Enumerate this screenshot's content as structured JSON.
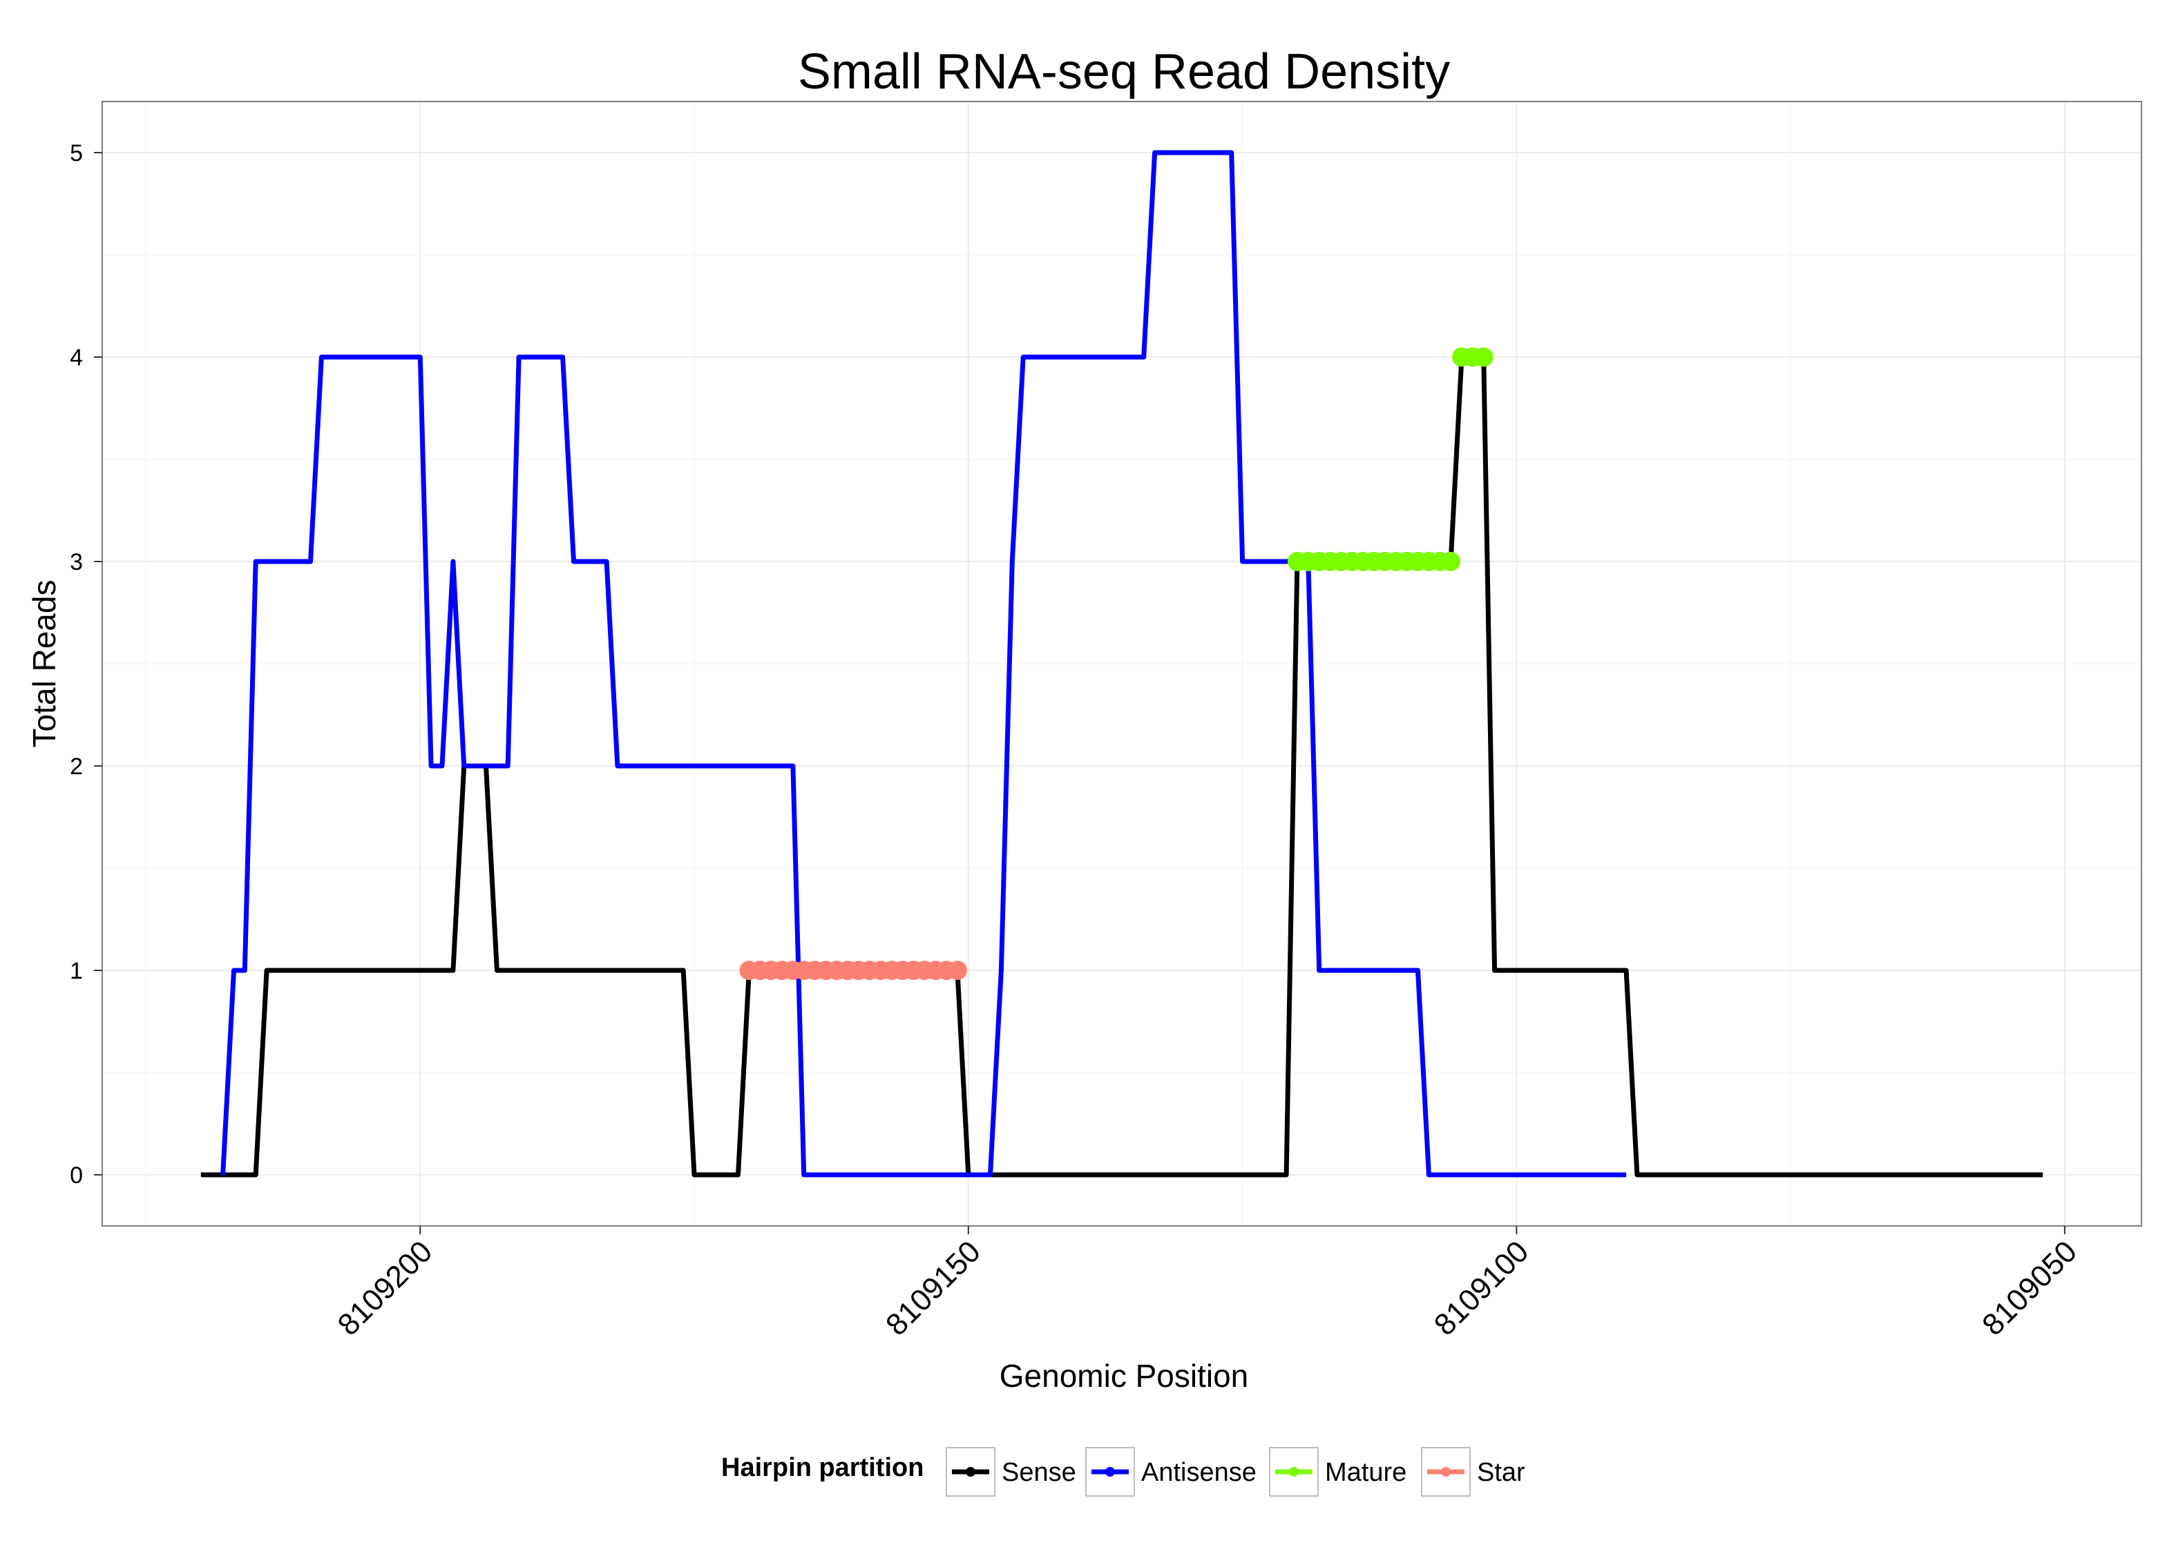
{
  "chart_data": {
    "type": "line",
    "title": "Small RNA-seq Read Density",
    "xlabel": "Genomic Position",
    "ylabel": "Total Reads",
    "x_reversed": true,
    "xlim": [
      8109229,
      8109043
    ],
    "ylim": [
      -0.25,
      5.25
    ],
    "x_ticks": [
      8109200,
      8109150,
      8109100,
      8109050
    ],
    "x_tick_labels": [
      "8109200",
      "8109150",
      "8109100",
      "8109050"
    ],
    "y_ticks": [
      0,
      1,
      2,
      3,
      4,
      5
    ],
    "y_tick_labels": [
      "0",
      "1",
      "2",
      "3",
      "4",
      "5"
    ],
    "grid": true,
    "legend": {
      "title": "Hairpin partition",
      "position": "bottom",
      "entries": [
        {
          "name": "Sense",
          "color": "#000000"
        },
        {
          "name": "Antisense",
          "color": "#0000ff"
        },
        {
          "name": "Mature",
          "color": "#7cfc00"
        },
        {
          "name": "Star",
          "color": "#fa8072"
        }
      ]
    },
    "series": [
      {
        "name": "Sense",
        "color": "#000000",
        "x": [
          8109220,
          8109215,
          8109214,
          8109200,
          8109197,
          8109196,
          8109194,
          8109193,
          8109176,
          8109175,
          8109171,
          8109170,
          8109151,
          8109150,
          8109121,
          8109120,
          8109106,
          8109105,
          8109103,
          8109102,
          8109090,
          8109089,
          8109052
        ],
        "values": [
          0,
          0,
          1,
          1,
          1,
          2,
          2,
          1,
          1,
          0,
          0,
          1,
          1,
          0,
          0,
          3,
          3,
          4,
          4,
          1,
          1,
          0,
          0
        ]
      },
      {
        "name": "Antisense",
        "color": "#0000ff",
        "x": [
          8109218,
          8109217,
          8109216,
          8109215,
          8109210,
          8109209,
          8109200,
          8109199,
          8109198,
          8109197,
          8109196,
          8109192,
          8109191,
          8109187,
          8109186,
          8109183,
          8109182,
          8109166,
          8109165,
          8109148,
          8109147,
          8109146,
          8109145,
          8109134,
          8109133,
          8109126,
          8109125,
          8109119,
          8109118,
          8109109,
          8109108,
          8109090
        ],
        "values": [
          0,
          1,
          1,
          3,
          3,
          4,
          4,
          2,
          2,
          3,
          2,
          2,
          4,
          4,
          3,
          3,
          2,
          2,
          0,
          0,
          1,
          3,
          4,
          4,
          5,
          5,
          3,
          3,
          1,
          1,
          0,
          0
        ]
      },
      {
        "name": "Mature",
        "color": "#7cfc00",
        "x": [
          8109120,
          8109119,
          8109118,
          8109117,
          8109116,
          8109115,
          8109114,
          8109113,
          8109112,
          8109111,
          8109110,
          8109109,
          8109108,
          8109107,
          8109106,
          8109105,
          8109104,
          8109103
        ],
        "values": [
          3,
          3,
          3,
          3,
          3,
          3,
          3,
          3,
          3,
          3,
          3,
          3,
          3,
          3,
          3,
          4,
          4,
          4
        ]
      },
      {
        "name": "Star",
        "color": "#fa8072",
        "x": [
          8109170,
          8109169,
          8109168,
          8109167,
          8109166,
          8109165,
          8109164,
          8109163,
          8109162,
          8109161,
          8109160,
          8109159,
          8109158,
          8109157,
          8109156,
          8109155,
          8109154,
          8109153,
          8109152,
          8109151
        ],
        "values": [
          1,
          1,
          1,
          1,
          1,
          1,
          1,
          1,
          1,
          1,
          1,
          1,
          1,
          1,
          1,
          1,
          1,
          1,
          1,
          1
        ]
      }
    ]
  }
}
